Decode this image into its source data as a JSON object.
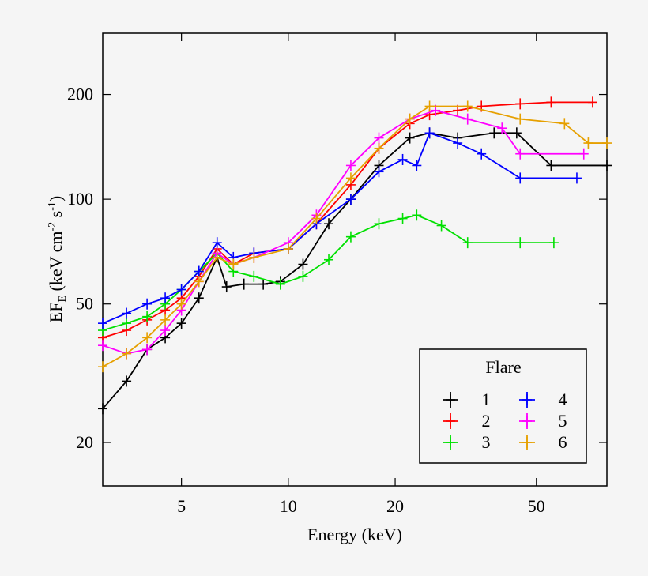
{
  "chart_data": {
    "type": "line",
    "xlabel": "Energy (keV)",
    "ylabel": [
      "EF",
      "E",
      " (keV cm",
      "-2",
      " s",
      "-1",
      ")"
    ],
    "xscale": "log",
    "yscale": "log",
    "xlim": [
      3,
      79
    ],
    "ylim": [
      15,
      300
    ],
    "xticks": [
      5,
      10,
      20,
      50
    ],
    "yticks": [
      20,
      50,
      100,
      200
    ],
    "legend": {
      "title": "Flare",
      "position": "lower right"
    },
    "series": [
      {
        "name": "1",
        "color": "#000000",
        "x": [
          3,
          3.5,
          4,
          4.5,
          5,
          5.6,
          6.3,
          6.7,
          7.5,
          8.5,
          9.5,
          11,
          13,
          15,
          18,
          22,
          25,
          30,
          38,
          44,
          55,
          79
        ],
        "values": [
          25,
          30,
          37,
          40,
          44,
          52,
          68,
          56,
          57,
          57,
          58,
          65,
          85,
          100,
          125,
          150,
          155,
          150,
          155,
          155,
          125,
          125
        ]
      },
      {
        "name": "2",
        "color": "#ff0000",
        "x": [
          3,
          3.5,
          4,
          4.5,
          5,
          5.6,
          6.3,
          7,
          8,
          10,
          12,
          15,
          18,
          22,
          25,
          30,
          35,
          45,
          55,
          72
        ],
        "values": [
          40,
          42,
          45,
          48,
          52,
          60,
          72,
          65,
          70,
          72,
          85,
          110,
          140,
          165,
          175,
          180,
          185,
          188,
          190,
          190
        ]
      },
      {
        "name": "3",
        "color": "#00e000",
        "x": [
          3,
          3.5,
          4,
          4.5,
          5,
          5.6,
          6.3,
          7,
          8,
          9.5,
          11,
          13,
          15,
          18,
          21,
          23,
          27,
          32,
          45,
          56
        ],
        "values": [
          42,
          44,
          46,
          50,
          55,
          62,
          70,
          62,
          60,
          57,
          60,
          67,
          78,
          85,
          88,
          90,
          84,
          75,
          75,
          75
        ]
      },
      {
        "name": "4",
        "color": "#0000ff",
        "x": [
          3,
          3.5,
          4,
          4.5,
          5,
          5.6,
          6.3,
          7,
          8,
          10,
          12,
          15,
          18,
          21,
          23,
          25,
          30,
          35,
          45,
          65
        ],
        "values": [
          44,
          47,
          50,
          52,
          55,
          62,
          75,
          68,
          70,
          72,
          85,
          100,
          120,
          130,
          125,
          155,
          145,
          135,
          115,
          115
        ]
      },
      {
        "name": "5",
        "color": "#ff00ff",
        "x": [
          3,
          3.5,
          4,
          4.5,
          5,
          5.6,
          6.3,
          7,
          8,
          10,
          12,
          15,
          18,
          22,
          26,
          32,
          40,
          45,
          68
        ],
        "values": [
          38,
          36,
          37,
          42,
          48,
          58,
          70,
          65,
          68,
          75,
          90,
          125,
          150,
          170,
          180,
          170,
          160,
          135,
          135
        ]
      },
      {
        "name": "6",
        "color": "#e6a000",
        "x": [
          3,
          3.5,
          4,
          4.5,
          5,
          5.6,
          6.3,
          7,
          8,
          10,
          12,
          15,
          18,
          22,
          25,
          32,
          45,
          60,
          70,
          79
        ],
        "values": [
          33,
          36,
          40,
          45,
          50,
          58,
          68,
          65,
          68,
          72,
          88,
          115,
          140,
          170,
          185,
          185,
          170,
          165,
          145,
          145
        ]
      }
    ]
  }
}
